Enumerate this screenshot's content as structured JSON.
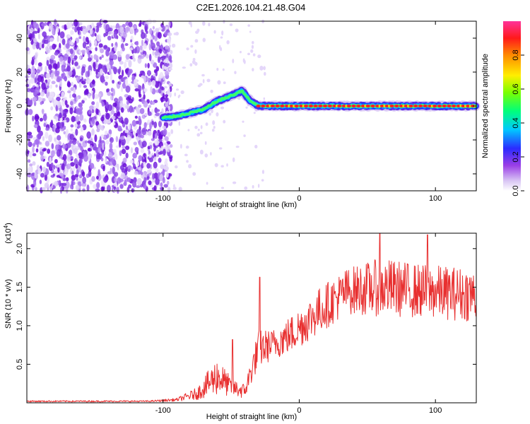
{
  "page_title": "C2E1.2026.104.21.48.G04",
  "chart_data": [
    {
      "type": "heatmap",
      "title": "C2E1.2026.104.21.48.G04",
      "xlabel": "Height of straight line (km)",
      "ylabel": "Frequency (Hz)",
      "xlim": [
        -200,
        130
      ],
      "ylim": [
        -50,
        50
      ],
      "xticks": [
        -100,
        0,
        100
      ],
      "yticks": [
        -40,
        -20,
        0,
        20,
        40
      ],
      "colorbar": {
        "label": "Normalized spectral amplitude",
        "range": [
          0,
          1
        ],
        "ticks": [
          0.0,
          0.2,
          0.4,
          0.6,
          0.8
        ]
      },
      "noise_region_x": [
        -200,
        -100
      ],
      "signal_trace": [
        {
          "x": -100,
          "freq": -7
        },
        {
          "x": -90,
          "freq": -6
        },
        {
          "x": -80,
          "freq": -4
        },
        {
          "x": -70,
          "freq": -2
        },
        {
          "x": -60,
          "freq": 3
        },
        {
          "x": -50,
          "freq": 6
        },
        {
          "x": -42,
          "freq": 9
        },
        {
          "x": -36,
          "freq": 3
        },
        {
          "x": -30,
          "freq": 0
        },
        {
          "x": 0,
          "freq": 0
        },
        {
          "x": 30,
          "freq": 0
        },
        {
          "x": 60,
          "freq": 0
        },
        {
          "x": 100,
          "freq": 0
        },
        {
          "x": 130,
          "freq": 0
        }
      ]
    },
    {
      "type": "line",
      "xlabel": "Height of straight line (km)",
      "ylabel": "SNR (10 * v/v)",
      "yscale_label": "(x10",
      "yscale_exp": "4",
      "xlim": [
        -200,
        130
      ],
      "ylim": [
        0,
        2.2
      ],
      "xticks": [
        -100,
        0,
        100
      ],
      "yticks": [
        "0.5",
        "1.0",
        "1.5",
        "2.0"
      ],
      "ytick_values": [
        0.5,
        1.0,
        1.5,
        2.0
      ],
      "color": "#e83030",
      "envelope": [
        {
          "x": -200,
          "mean": 0.02,
          "amp": 0.01
        },
        {
          "x": -110,
          "mean": 0.02,
          "amp": 0.01
        },
        {
          "x": -90,
          "mean": 0.04,
          "amp": 0.02
        },
        {
          "x": -75,
          "mean": 0.12,
          "amp": 0.08
        },
        {
          "x": -60,
          "mean": 0.35,
          "amp": 0.25
        },
        {
          "x": -50,
          "mean": 0.2,
          "amp": 0.12
        },
        {
          "x": -40,
          "mean": 0.15,
          "amp": 0.1
        },
        {
          "x": -30,
          "mean": 0.7,
          "amp": 0.25
        },
        {
          "x": -20,
          "mean": 0.75,
          "amp": 0.2
        },
        {
          "x": -5,
          "mean": 0.9,
          "amp": 0.25
        },
        {
          "x": 15,
          "mean": 1.2,
          "amp": 0.3
        },
        {
          "x": 35,
          "mean": 1.45,
          "amp": 0.3
        },
        {
          "x": 60,
          "mean": 1.5,
          "amp": 0.38
        },
        {
          "x": 90,
          "mean": 1.45,
          "amp": 0.35
        },
        {
          "x": 130,
          "mean": 1.4,
          "amp": 0.35
        }
      ],
      "peaks": [
        {
          "x": -49,
          "value": 0.82
        },
        {
          "x": -29,
          "value": 1.63
        },
        {
          "x": 59,
          "value": 2.2
        },
        {
          "x": 94,
          "value": 2.18
        }
      ]
    }
  ]
}
